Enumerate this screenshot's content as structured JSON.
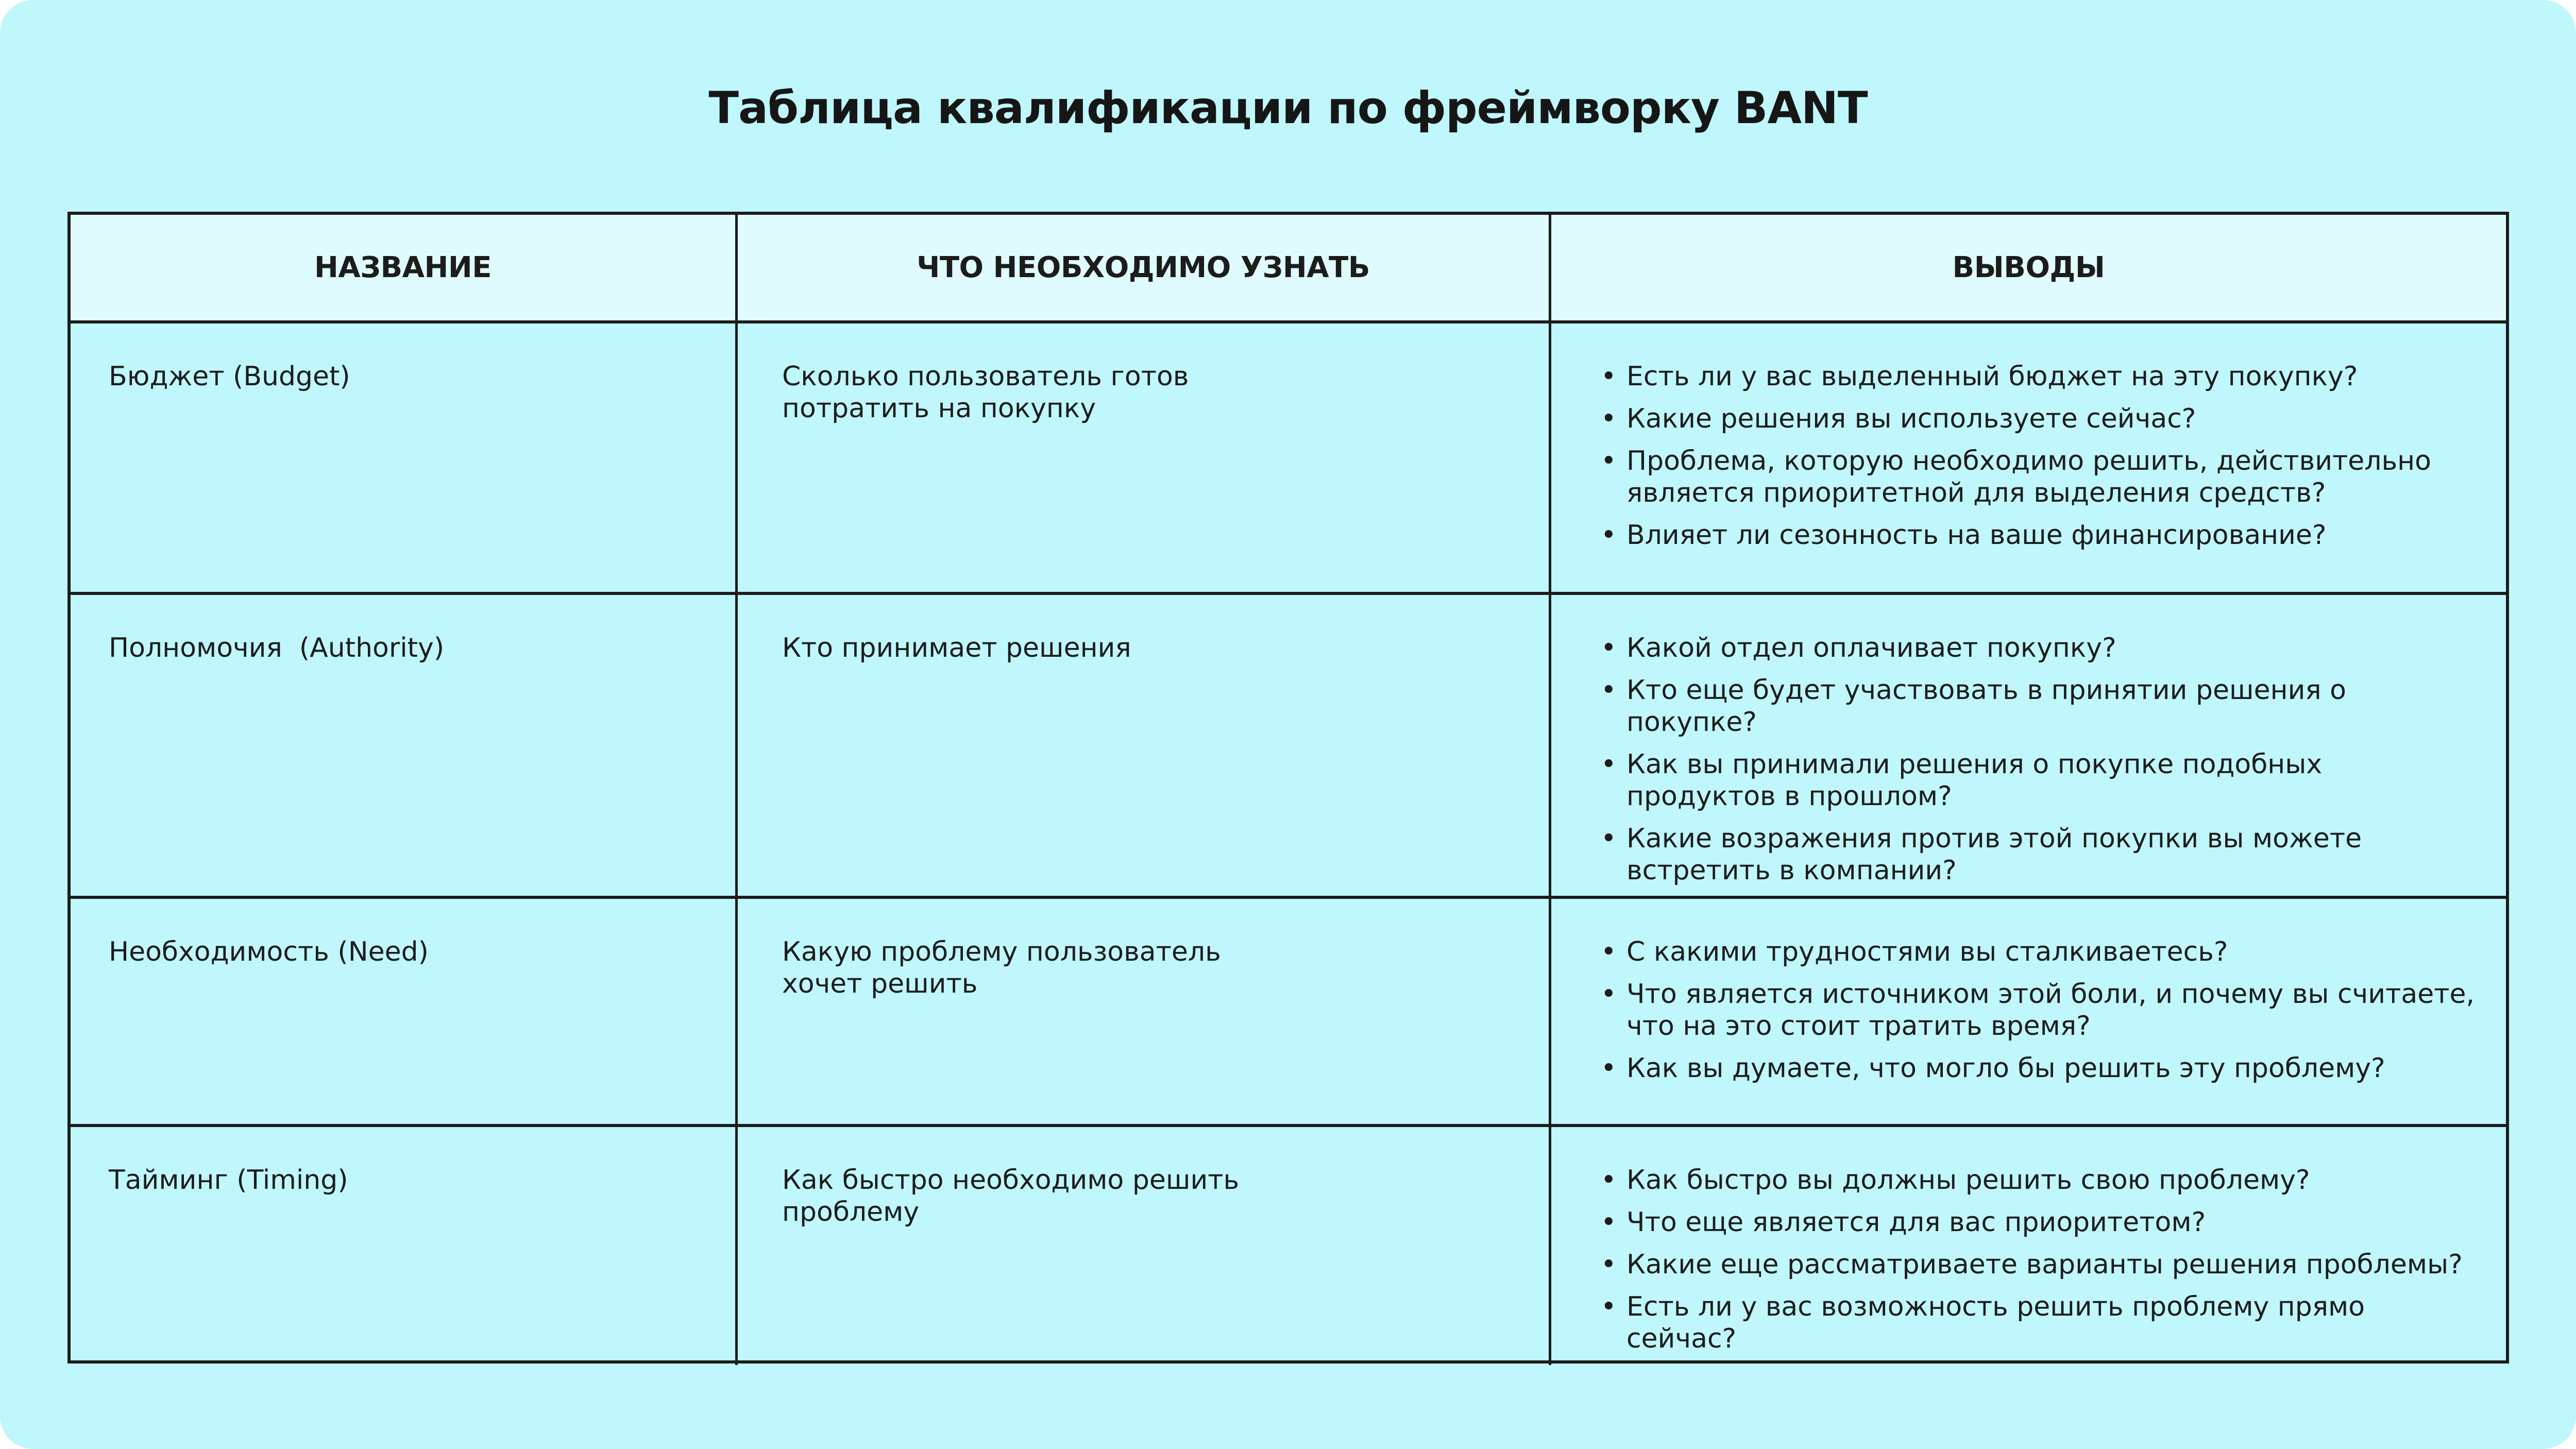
{
  "title": "Таблица квалификации по фреймворку BANT",
  "colors": {
    "background": "#bff7fd",
    "header_background": "#e0fbfd",
    "border": "#1c1c1c"
  },
  "table": {
    "headers": [
      "НАЗВАНИЕ",
      "ЧТО НЕОБХОДИМО УЗНАТЬ",
      "ВЫВОДЫ"
    ],
    "rows": [
      {
        "name": "Бюджет (Budget)",
        "what": "Сколько пользователь готов\nпотратить на покупку",
        "conclusions": [
          "Есть ли у вас выделенный бюджет на эту покупку?",
          "Какие решения вы используете сейчас?",
          "Проблема, которую необходимо решить, действительно является приоритетной для выделения средств?",
          "Влияет ли сезонность на ваше финансирование?"
        ]
      },
      {
        "name": "Полномочия  (Authority)",
        "what": "Кто принимает решения",
        "conclusions": [
          "Какой отдел оплачивает покупку?",
          "Кто еще будет участвовать в принятии решения о покупке?",
          "Как вы принимали решения о покупке подобных продуктов в прошлом?",
          "Какие возражения против этой покупки вы можете встретить в компании?"
        ]
      },
      {
        "name": "Необходимость (Need)",
        "what": "Какую проблему пользователь\nхочет решить",
        "conclusions": [
          "С какими трудностями вы сталкиваетесь?",
          "Что является источником этой боли, и почему вы считаете, что на это стоит тратить время?",
          "Как вы думаете, что могло бы решить эту проблему?"
        ]
      },
      {
        "name": "Тайминг (Timing)",
        "what": "Как быстро необходимо решить\nпроблему",
        "conclusions": [
          "Как быстро вы должны решить свою проблему?",
          "Что еще является для вас приоритетом?",
          "Какие еще рассматриваете варианты решения проблемы?",
          "Есть ли у вас возможность решить проблему прямо сейчас?"
        ]
      }
    ]
  }
}
